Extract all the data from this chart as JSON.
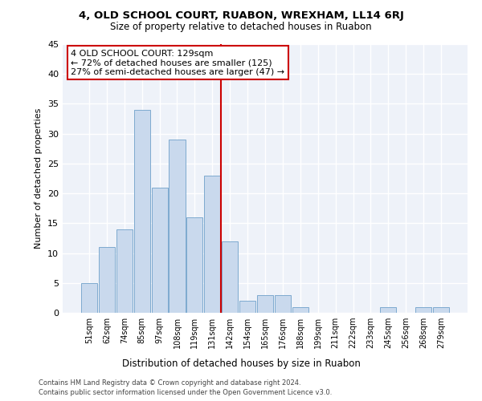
{
  "title1": "4, OLD SCHOOL COURT, RUABON, WREXHAM, LL14 6RJ",
  "title2": "Size of property relative to detached houses in Ruabon",
  "xlabel": "Distribution of detached houses by size in Ruabon",
  "ylabel": "Number of detached properties",
  "categories": [
    "51sqm",
    "62sqm",
    "74sqm",
    "85sqm",
    "97sqm",
    "108sqm",
    "119sqm",
    "131sqm",
    "142sqm",
    "154sqm",
    "165sqm",
    "176sqm",
    "188sqm",
    "199sqm",
    "211sqm",
    "222sqm",
    "233sqm",
    "245sqm",
    "256sqm",
    "268sqm",
    "279sqm"
  ],
  "values": [
    5,
    11,
    14,
    34,
    21,
    29,
    16,
    23,
    12,
    2,
    3,
    3,
    1,
    0,
    0,
    0,
    0,
    1,
    0,
    1,
    1
  ],
  "bar_color": "#c9d9ed",
  "bar_edge_color": "#7eaacf",
  "vline_color": "#cc0000",
  "annotation_text": "4 OLD SCHOOL COURT: 129sqm\n← 72% of detached houses are smaller (125)\n27% of semi-detached houses are larger (47) →",
  "annotation_box_color": "#ffffff",
  "annotation_box_edge": "#cc0000",
  "ylim": [
    0,
    45
  ],
  "yticks": [
    0,
    5,
    10,
    15,
    20,
    25,
    30,
    35,
    40,
    45
  ],
  "background_color": "#eef2f9",
  "grid_color": "#ffffff",
  "footer1": "Contains HM Land Registry data © Crown copyright and database right 2024.",
  "footer2": "Contains public sector information licensed under the Open Government Licence v3.0."
}
